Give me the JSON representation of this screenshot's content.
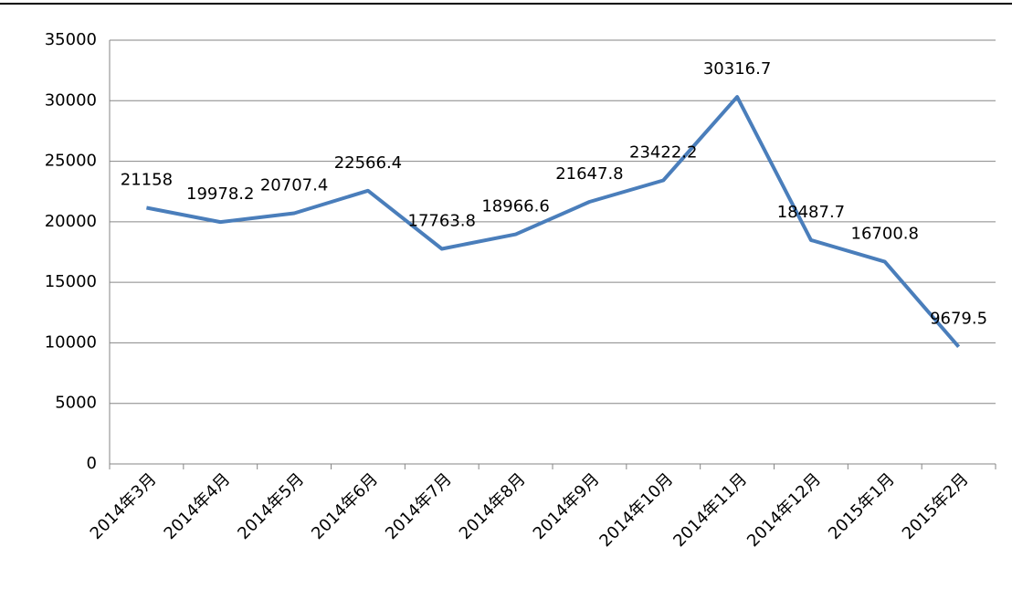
{
  "chart_data": {
    "type": "line",
    "categories": [
      "2014年3月",
      "2014年4月",
      "2014年5月",
      "2014年6月",
      "2014年7月",
      "2014年8月",
      "2014年9月",
      "2014年10月",
      "2014年11月",
      "2014年12月",
      "2015年1月",
      "2015年2月"
    ],
    "series": [
      {
        "name": "",
        "color": "#4a7ebb",
        "values": [
          21158,
          19978.2,
          20707.4,
          22566.4,
          17763.8,
          18966.6,
          21647.8,
          23422.2,
          30316.7,
          18487.7,
          16700.8,
          9679.5
        ]
      }
    ],
    "ylim": [
      0,
      35000
    ],
    "yticks": [
      0,
      5000,
      10000,
      15000,
      20000,
      25000,
      30000,
      35000
    ],
    "grid": true
  }
}
